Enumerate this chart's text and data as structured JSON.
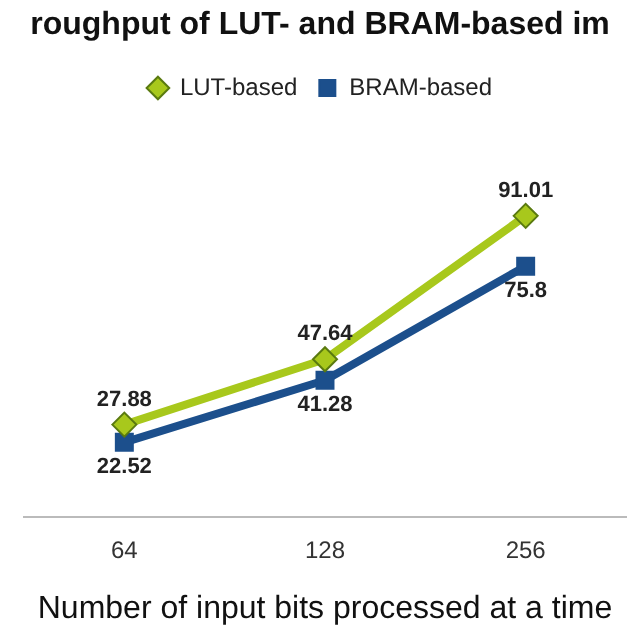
{
  "chart_data": {
    "type": "line",
    "title": "roughput of LUT- and BRAM-based im",
    "xlabel": "Number of input bits processed at a time",
    "categories": [
      "64",
      "128",
      "256"
    ],
    "series": [
      {
        "name": "LUT-based",
        "color": "#a8c81c",
        "marker": "diamond",
        "values": [
          27.88,
          47.64,
          91.01
        ]
      },
      {
        "name": "BRAM-based",
        "color": "#1c4f8c",
        "marker": "square",
        "values": [
          22.52,
          41.28,
          75.8
        ]
      }
    ],
    "data_labels": true,
    "legend": "top",
    "grid": false,
    "tick_labels": "x"
  }
}
